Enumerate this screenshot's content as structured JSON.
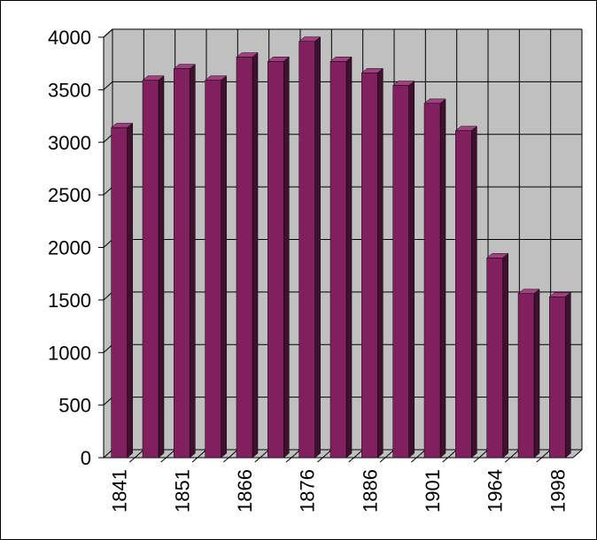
{
  "chart_data": {
    "type": "bar3d",
    "categories": [
      "1841",
      null,
      "1851",
      null,
      "1866",
      null,
      "1876",
      null,
      "1886",
      null,
      "1901",
      null,
      "1964",
      null,
      "1998"
    ],
    "values": [
      3140,
      3590,
      3700,
      3590,
      3810,
      3770,
      3960,
      3770,
      3660,
      3540,
      3370,
      3110,
      1900,
      1560,
      1530
    ],
    "color": "#80205f",
    "ylim": [
      0,
      4000
    ],
    "yticks": [
      0,
      500,
      1000,
      1500,
      2000,
      2500,
      3000,
      3500,
      4000
    ],
    "grid": true
  }
}
